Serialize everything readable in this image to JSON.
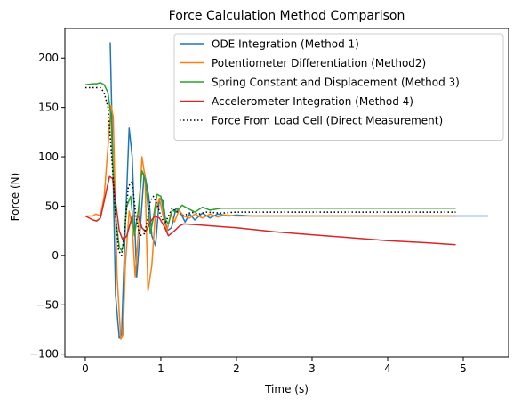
{
  "chart_data": {
    "type": "line",
    "title": "Force Calculation Method Comparison",
    "xlabel": "Time (s)",
    "ylabel": "Force (N)",
    "xlim": [
      -0.27,
      5.6
    ],
    "ylim": [
      -103,
      230
    ],
    "xticks": [
      0,
      1,
      2,
      3,
      4,
      5
    ],
    "yticks": [
      -100,
      -50,
      0,
      50,
      100,
      150,
      200
    ],
    "grid": false,
    "legend_position": "top-right",
    "series": [
      {
        "name": "ODE Integration (Method 1)",
        "color": "#1f77b4",
        "style": "solid",
        "x": [
          0.33,
          0.36,
          0.4,
          0.45,
          0.48,
          0.52,
          0.58,
          0.62,
          0.68,
          0.72,
          0.78,
          0.84,
          0.88,
          0.93,
          0.98,
          1.03,
          1.08,
          1.14,
          1.2,
          1.25,
          1.32,
          1.38,
          1.45,
          1.55,
          1.65,
          1.75,
          1.9,
          2.0,
          2.2,
          2.5,
          3.0,
          3.5,
          4.0,
          4.5,
          5.0,
          5.33
        ],
        "y": [
          216,
          110,
          -40,
          -84,
          -80,
          10,
          129,
          100,
          -22,
          20,
          85,
          60,
          20,
          10,
          58,
          55,
          25,
          28,
          48,
          45,
          34,
          42,
          36,
          43,
          38,
          42,
          40,
          41,
          40,
          40,
          40,
          40,
          40,
          40,
          40,
          40
        ]
      },
      {
        "name": "Potentiometer Differentiation (Method2)",
        "color": "#ff7f0e",
        "style": "solid",
        "x": [
          0,
          0.1,
          0.14,
          0.2,
          0.25,
          0.3,
          0.34,
          0.37,
          0.42,
          0.47,
          0.5,
          0.53,
          0.58,
          0.62,
          0.66,
          0.7,
          0.75,
          0.79,
          0.83,
          0.88,
          0.93,
          0.98,
          1.03,
          1.08,
          1.13,
          1.18,
          1.24,
          1.3,
          1.38,
          1.45,
          1.55,
          1.65,
          1.75,
          1.85,
          2.0,
          2.2,
          2.5,
          3.0,
          3.5,
          4.0,
          4.5,
          4.9
        ],
        "y": [
          40,
          40,
          42,
          40,
          60,
          110,
          152,
          140,
          -20,
          -85,
          -80,
          -10,
          45,
          30,
          -22,
          22,
          100,
          80,
          -36,
          -10,
          45,
          58,
          40,
          25,
          42,
          34,
          46,
          40,
          38,
          42,
          38,
          42,
          39,
          41,
          40,
          40,
          40,
          40,
          40,
          40,
          40,
          40
        ]
      },
      {
        "name": "Spring Constant and Displacement (Method 3)",
        "color": "#2ca02c",
        "style": "solid",
        "x": [
          0,
          0.1,
          0.15,
          0.2,
          0.25,
          0.3,
          0.34,
          0.36,
          0.4,
          0.45,
          0.48,
          0.5,
          0.55,
          0.6,
          0.65,
          0.7,
          0.75,
          0.8,
          0.86,
          0.9,
          0.95,
          1.0,
          1.05,
          1.1,
          1.15,
          1.2,
          1.28,
          1.35,
          1.45,
          1.55,
          1.65,
          1.8,
          2.0,
          2.5,
          3.0,
          3.5,
          4.0,
          4.5,
          4.9
        ],
        "y": [
          173,
          174,
          174,
          175,
          173,
          165,
          140,
          100,
          40,
          8,
          5,
          10,
          50,
          60,
          20,
          45,
          86,
          75,
          22,
          38,
          62,
          60,
          38,
          32,
          46,
          44,
          51,
          48,
          44,
          49,
          46,
          48,
          48,
          48,
          48,
          48,
          48,
          48,
          48
        ]
      },
      {
        "name": "Accelerometer Integration (Method 4)",
        "color": "#d62728",
        "style": "solid",
        "x": [
          0,
          0.1,
          0.15,
          0.2,
          0.25,
          0.32,
          0.36,
          0.4,
          0.45,
          0.5,
          0.55,
          0.62,
          0.7,
          0.75,
          0.8,
          0.86,
          0.92,
          0.98,
          1.04,
          1.1,
          1.18,
          1.25,
          1.3,
          1.5,
          2.0,
          2.5,
          3.0,
          3.5,
          4.0,
          4.5,
          4.9
        ],
        "y": [
          40,
          36,
          35,
          38,
          55,
          80,
          78,
          55,
          25,
          15,
          20,
          40,
          40,
          28,
          24,
          34,
          40,
          38,
          30,
          20,
          25,
          30,
          32,
          31,
          28,
          24,
          21,
          18,
          15,
          13,
          11
        ]
      },
      {
        "name": "Force From Load Cell (Direct Measurement)",
        "color": "#000000",
        "style": "dotted",
        "x": [
          0,
          0.1,
          0.2,
          0.25,
          0.3,
          0.35,
          0.4,
          0.44,
          0.48,
          0.52,
          0.57,
          0.62,
          0.67,
          0.72,
          0.78,
          0.82,
          0.86,
          0.9,
          0.95,
          1.0,
          1.05,
          1.1,
          1.15,
          1.2,
          1.3,
          1.4,
          1.5,
          1.6,
          1.8,
          2.0,
          2.5,
          3.0,
          3.5,
          4.0,
          4.5,
          4.9
        ],
        "y": [
          170,
          170,
          170,
          165,
          150,
          100,
          40,
          5,
          0,
          25,
          70,
          75,
          40,
          20,
          22,
          35,
          55,
          60,
          52,
          40,
          32,
          40,
          48,
          45,
          40,
          44,
          42,
          44,
          43,
          44,
          44,
          44,
          44,
          44,
          44,
          44
        ]
      }
    ]
  }
}
